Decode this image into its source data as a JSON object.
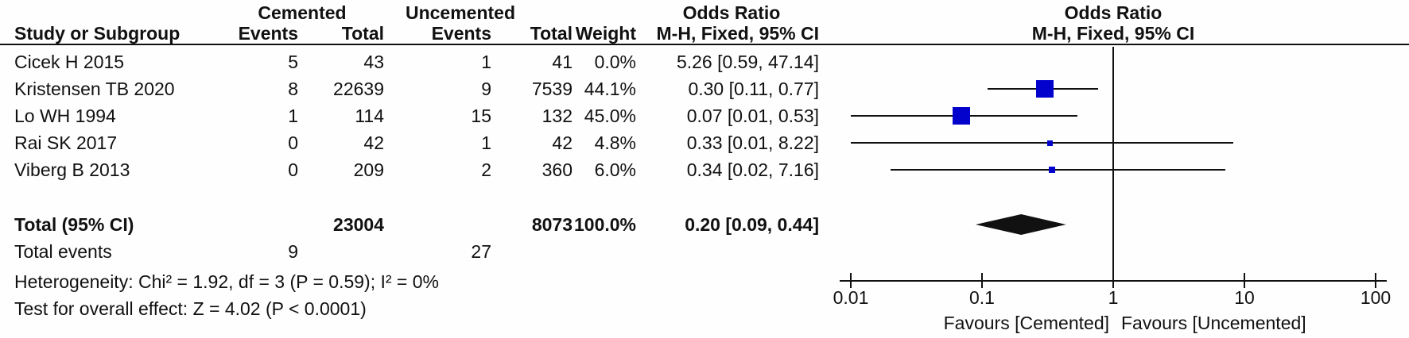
{
  "table": {
    "group1_header": "Cemented",
    "group2_header": "Uncemented",
    "or_col_header": "Odds Ratio",
    "or_col_subheader": "M-H, Fixed, 95% CI",
    "plot_header": "Odds Ratio",
    "plot_subheader": "M-H, Fixed, 95% CI",
    "col_study": "Study or Subgroup",
    "col_events": "Events",
    "col_total": "Total",
    "col_events2": "Events",
    "col_total2": "Total",
    "col_weight": "Weight",
    "rows": [
      {
        "study": "Cicek H 2015",
        "events1": "5",
        "total1": "43",
        "events2": "1",
        "total2": "41",
        "weight": "0.0%",
        "or_ci": "5.26 [0.59, 47.14]"
      },
      {
        "study": "Kristensen TB 2020",
        "events1": "8",
        "total1": "22639",
        "events2": "9",
        "total2": "7539",
        "weight": "44.1%",
        "or_ci": "0.30 [0.11, 0.77]"
      },
      {
        "study": "Lo WH 1994",
        "events1": "1",
        "total1": "114",
        "events2": "15",
        "total2": "132",
        "weight": "45.0%",
        "or_ci": "0.07 [0.01, 0.53]"
      },
      {
        "study": "Rai SK 2017",
        "events1": "0",
        "total1": "42",
        "events2": "1",
        "total2": "42",
        "weight": "4.8%",
        "or_ci": "0.33 [0.01, 8.22]"
      },
      {
        "study": "Viberg B 2013",
        "events1": "0",
        "total1": "209",
        "events2": "2",
        "total2": "360",
        "weight": "6.0%",
        "or_ci": "0.34 [0.02, 7.16]"
      }
    ],
    "total_row": {
      "label": "Total (95% CI)",
      "total1": "23004",
      "total2": "8073",
      "weight": "100.0%",
      "or_ci": "0.20 [0.09, 0.44]"
    },
    "total_events_row": {
      "label": "Total events",
      "events1": "9",
      "events2": "27"
    },
    "heterogeneity_line": "Heterogeneity: Chi² = 1.92, df = 3 (P = 0.59); I² = 0%",
    "overall_effect_line": "Test for overall effect: Z = 4.02 (P < 0.0001)"
  },
  "chart_data": {
    "type": "scatter",
    "subtype": "forest-plot",
    "x_scale": "log",
    "xlim": [
      0.01,
      100
    ],
    "ticks": [
      0.01,
      0.1,
      1,
      10,
      100
    ],
    "tick_labels": [
      "0.01",
      "0.1",
      "1",
      "10",
      "100"
    ],
    "null_line": 1,
    "studies": [
      {
        "name": "Cicek H 2015",
        "or": 5.26,
        "ci_low": 0.59,
        "ci_high": 47.14,
        "weight_pct": 0.0,
        "plotted": false
      },
      {
        "name": "Kristensen TB 2020",
        "or": 0.3,
        "ci_low": 0.11,
        "ci_high": 0.77,
        "weight_pct": 44.1,
        "plotted": true
      },
      {
        "name": "Lo WH 1994",
        "or": 0.07,
        "ci_low": 0.01,
        "ci_high": 0.53,
        "weight_pct": 45.0,
        "plotted": true
      },
      {
        "name": "Rai SK 2017",
        "or": 0.33,
        "ci_low": 0.01,
        "ci_high": 8.22,
        "weight_pct": 4.8,
        "plotted": true
      },
      {
        "name": "Viberg B 2013",
        "or": 0.34,
        "ci_low": 0.02,
        "ci_high": 7.16,
        "weight_pct": 6.0,
        "plotted": true
      }
    ],
    "total_diamond": {
      "or": 0.2,
      "ci_low": 0.09,
      "ci_high": 0.44
    },
    "favours_left": "Favours [Cemented]",
    "favours_right": "Favours [Uncemented]",
    "marker_color": "#0202cc",
    "line_color": "#111111",
    "diamond_color": "#111111"
  }
}
